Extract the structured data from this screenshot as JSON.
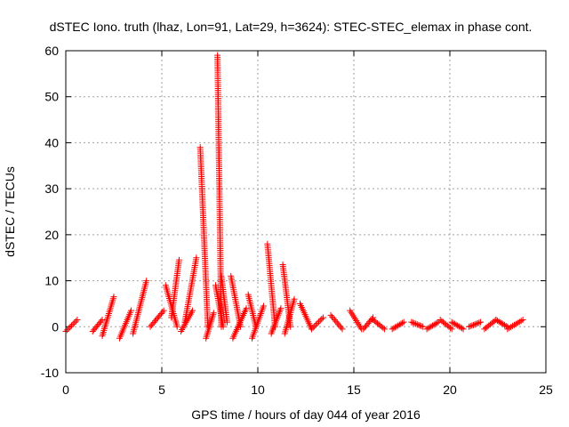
{
  "chart_data": {
    "type": "scatter",
    "title": "dSTEC Iono. truth (lhaz, Lon=91, Lat=29, h=3624): STEC-STEC_elemax in phase cont.",
    "xlabel": "GPS time / hours of day 044 of year 2016",
    "ylabel": "dSTEC  / TECUs",
    "xlim": [
      0,
      25
    ],
    "ylim": [
      -10,
      60
    ],
    "xticks": [
      0,
      5,
      10,
      15,
      20,
      25
    ],
    "yticks": [
      -10,
      0,
      10,
      20,
      30,
      40,
      50,
      60
    ],
    "grid": true,
    "legend": "none",
    "marker": "plus",
    "color": "#ff0000",
    "arcs": [
      {
        "x_start": 0.0,
        "x_end": 0.6,
        "y_start": -1.0,
        "y_end": 1.5
      },
      {
        "x_start": 1.4,
        "x_end": 1.9,
        "y_start": -1.0,
        "y_end": 1.5
      },
      {
        "x_start": 1.9,
        "x_end": 2.5,
        "y_start": -2.0,
        "y_end": 6.5
      },
      {
        "x_start": 2.8,
        "x_end": 3.4,
        "y_start": -2.5,
        "y_end": 3.5
      },
      {
        "x_start": 3.5,
        "x_end": 4.2,
        "y_start": -1.5,
        "y_end": 10.0
      },
      {
        "x_start": 4.4,
        "x_end": 5.1,
        "y_start": 0.0,
        "y_end": 3.5
      },
      {
        "x_start": 5.2,
        "x_end": 5.8,
        "y_start": 9.0,
        "y_end": 0.0
      },
      {
        "x_start": 5.5,
        "x_end": 5.9,
        "y_start": 2.0,
        "y_end": 14.5
      },
      {
        "x_start": 6.0,
        "x_end": 6.6,
        "y_start": -1.0,
        "y_end": 3.5
      },
      {
        "x_start": 6.2,
        "x_end": 6.8,
        "y_start": 1.0,
        "y_end": 15.0
      },
      {
        "x_start": 7.0,
        "x_end": 7.4,
        "y_start": 39.0,
        "y_end": 0.0
      },
      {
        "x_start": 7.3,
        "x_end": 7.7,
        "y_start": -2.5,
        "y_end": 3.0
      },
      {
        "x_start": 7.8,
        "x_end": 8.2,
        "y_start": 9.0,
        "y_end": 0.0
      },
      {
        "x_start": 7.9,
        "x_end": 8.1,
        "y_start": 59.0,
        "y_end": 0.0
      },
      {
        "x_start": 8.1,
        "x_end": 8.4,
        "y_start": 11.0,
        "y_end": 1.0
      },
      {
        "x_start": 8.6,
        "x_end": 9.1,
        "y_start": 11.0,
        "y_end": 0.0
      },
      {
        "x_start": 8.7,
        "x_end": 9.4,
        "y_start": -2.5,
        "y_end": 4.0
      },
      {
        "x_start": 9.5,
        "x_end": 9.9,
        "y_start": 7.0,
        "y_end": 0.0
      },
      {
        "x_start": 9.7,
        "x_end": 10.3,
        "y_start": -2.5,
        "y_end": 4.5
      },
      {
        "x_start": 10.5,
        "x_end": 10.9,
        "y_start": 18.0,
        "y_end": 0.0
      },
      {
        "x_start": 10.7,
        "x_end": 11.2,
        "y_start": -1.5,
        "y_end": 4.0
      },
      {
        "x_start": 11.3,
        "x_end": 11.7,
        "y_start": 13.5,
        "y_end": 0.0
      },
      {
        "x_start": 11.4,
        "x_end": 11.9,
        "y_start": -1.5,
        "y_end": 6.0
      },
      {
        "x_start": 12.2,
        "x_end": 12.8,
        "y_start": 5.0,
        "y_end": -0.5
      },
      {
        "x_start": 12.8,
        "x_end": 13.4,
        "y_start": -0.5,
        "y_end": 2.0
      },
      {
        "x_start": 13.8,
        "x_end": 14.4,
        "y_start": 2.5,
        "y_end": -0.5
      },
      {
        "x_start": 14.8,
        "x_end": 15.4,
        "y_start": 3.5,
        "y_end": -0.5
      },
      {
        "x_start": 15.5,
        "x_end": 16.0,
        "y_start": -0.5,
        "y_end": 2.0
      },
      {
        "x_start": 16.0,
        "x_end": 16.6,
        "y_start": 1.5,
        "y_end": -0.5
      },
      {
        "x_start": 17.0,
        "x_end": 17.6,
        "y_start": -0.5,
        "y_end": 1.0
      },
      {
        "x_start": 18.0,
        "x_end": 18.6,
        "y_start": 1.0,
        "y_end": 0.0
      },
      {
        "x_start": 18.8,
        "x_end": 19.4,
        "y_start": -0.5,
        "y_end": 1.0
      },
      {
        "x_start": 19.5,
        "x_end": 20.1,
        "y_start": 1.5,
        "y_end": -0.5
      },
      {
        "x_start": 20.1,
        "x_end": 20.7,
        "y_start": 1.0,
        "y_end": -0.5
      },
      {
        "x_start": 21.0,
        "x_end": 21.6,
        "y_start": 0.0,
        "y_end": 1.0
      },
      {
        "x_start": 21.8,
        "x_end": 22.4,
        "y_start": -0.5,
        "y_end": 1.5
      },
      {
        "x_start": 22.4,
        "x_end": 23.0,
        "y_start": 1.5,
        "y_end": 0.0
      },
      {
        "x_start": 23.0,
        "x_end": 23.8,
        "y_start": -0.5,
        "y_end": 1.5
      }
    ]
  }
}
